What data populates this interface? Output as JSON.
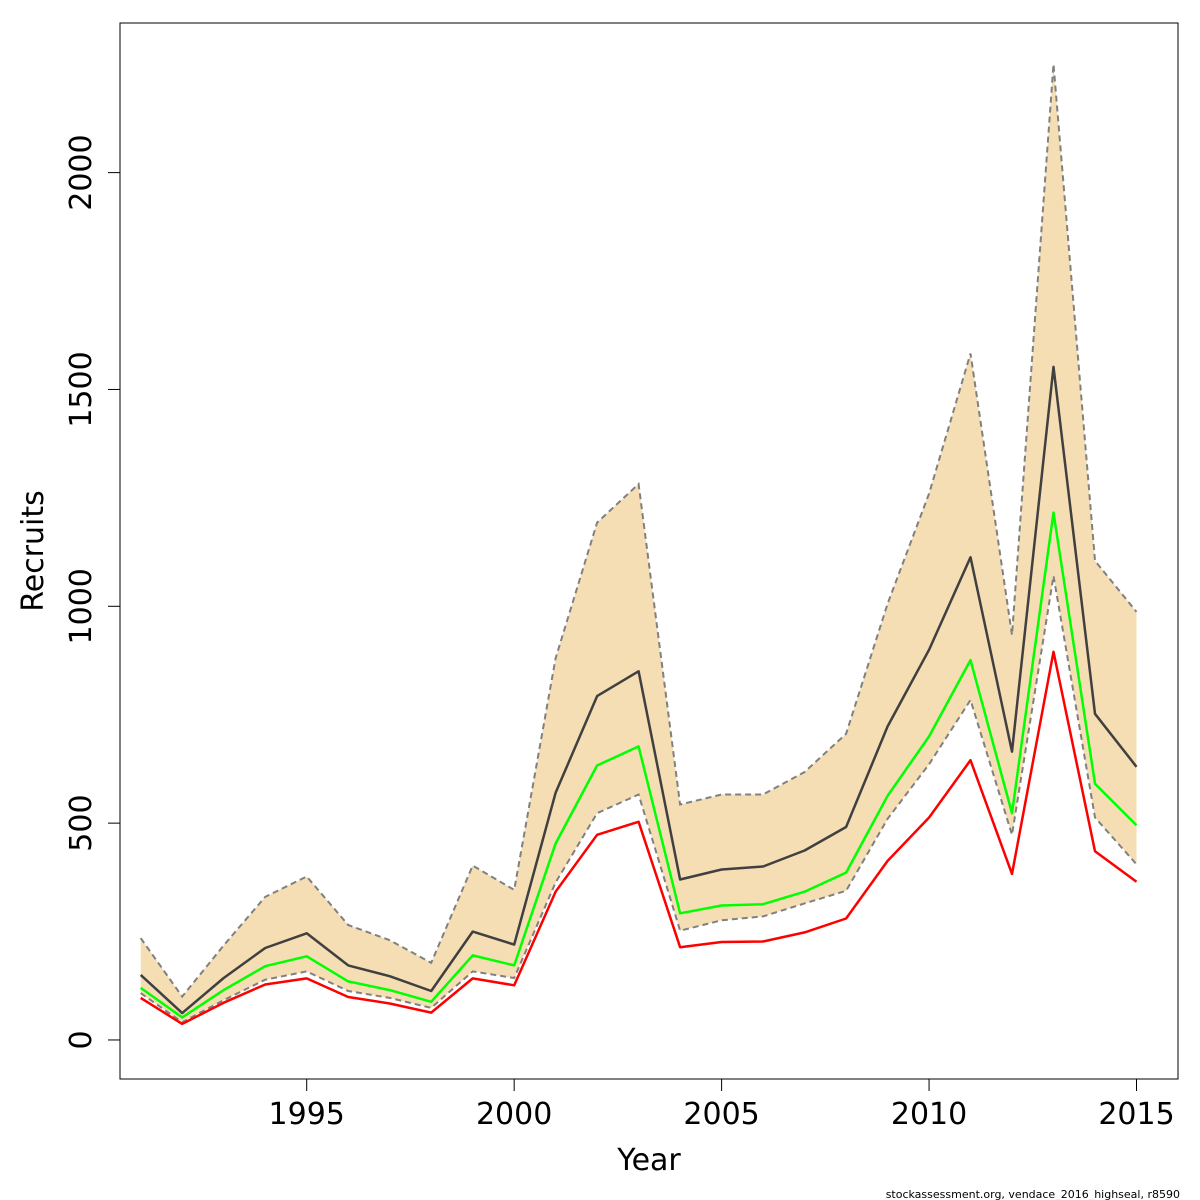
{
  "chart_data": {
    "type": "line",
    "xlabel": "Year",
    "ylabel": "Recruits",
    "xlim": [
      1990.5,
      2016
    ],
    "ylim": [
      -90,
      2345
    ],
    "x_ticks": [
      1995,
      2000,
      2005,
      2010,
      2015
    ],
    "x_tick_labels": [
      "1995",
      "2000",
      "2005",
      "2010",
      "2015"
    ],
    "y_ticks": [
      0,
      500,
      1000,
      1500,
      2000
    ],
    "y_tick_labels": [
      "0",
      "500",
      "1000",
      "1500",
      "2000"
    ],
    "x": [
      1991,
      1992,
      1993,
      1994,
      1995,
      1996,
      1997,
      1998,
      1999,
      2000,
      2001,
      2002,
      2003,
      2004,
      2005,
      2006,
      2007,
      2008,
      2009,
      2010,
      2011,
      2012,
      2013,
      2014,
      2015
    ],
    "band": {
      "name": "confidence interval",
      "color": "#F5DEB3",
      "edge_color": "#808080",
      "upper": [
        235,
        100,
        218,
        330,
        377,
        265,
        230,
        178,
        402,
        346,
        880,
        1193,
        1282,
        543,
        566,
        566,
        618,
        706,
        1006,
        1260,
        1583,
        934,
        2250,
        1105,
        987
      ],
      "lower": [
        108,
        41,
        92,
        139,
        158,
        113,
        97,
        74,
        158,
        143,
        363,
        523,
        566,
        252,
        276,
        285,
        315,
        344,
        510,
        636,
        784,
        473,
        1070,
        513,
        405
      ]
    },
    "series": [
      {
        "name": "estimate",
        "color": "#404040",
        "values": [
          150,
          62,
          143,
          212,
          246,
          172,
          147,
          113,
          250,
          220,
          570,
          793,
          850,
          370,
          393,
          400,
          437,
          491,
          723,
          900,
          1113,
          665,
          1552,
          752,
          630
        ]
      },
      {
        "name": "green series",
        "color": "#00FF00",
        "values": [
          120,
          52,
          115,
          170,
          193,
          135,
          115,
          88,
          195,
          172,
          453,
          633,
          677,
          292,
          310,
          313,
          342,
          386,
          563,
          700,
          876,
          523,
          1216,
          591,
          495
        ]
      },
      {
        "name": "red series",
        "color": "#FF0000",
        "values": [
          97,
          37,
          86,
          128,
          142,
          99,
          84,
          63,
          142,
          126,
          342,
          473,
          503,
          214,
          226,
          227,
          248,
          280,
          413,
          513,
          645,
          383,
          895,
          435,
          365
        ]
      }
    ]
  },
  "footer": {
    "text": "stockassessment.org, vendace_2016_highseal, r8590"
  }
}
